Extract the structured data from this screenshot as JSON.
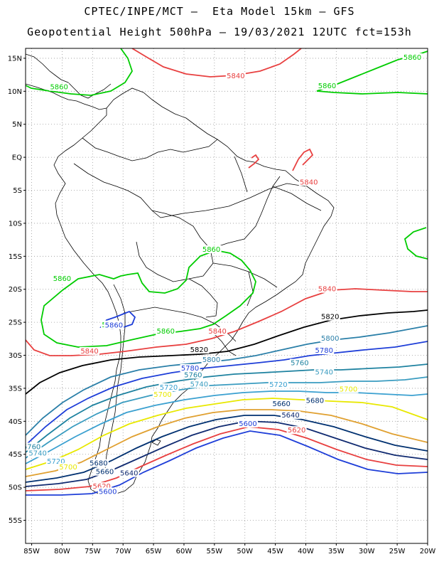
{
  "title": {
    "line1": "CPTEC/INPE/MCT –  Eta Model 15km – GFS",
    "line2": "Geopotential Height 500hPa – 19/03/2021 12UTC fct=153h"
  },
  "axes": {
    "lat_labels": [
      "15N",
      "10N",
      "5N",
      "EQ",
      "5S",
      "10S",
      "15S",
      "20S",
      "25S",
      "30S",
      "35S",
      "40S",
      "45S",
      "50S",
      "55S"
    ],
    "lon_labels": [
      "85W",
      "80W",
      "75W",
      "70W",
      "65W",
      "60W",
      "55W",
      "50W",
      "45W",
      "40W",
      "35W",
      "30W",
      "25W",
      "20W"
    ],
    "lat_range": [
      -58.5,
      16.5
    ],
    "lon_range": [
      -86,
      -20
    ]
  },
  "colors": {
    "5860": "#00cc00",
    "5840": "#e84040",
    "5820": "#000000",
    "5800": "#2a7fa8",
    "5780": "#1e3ed8",
    "5760": "#1e82a0",
    "5740": "#3a9cc0",
    "5720": "#3aa0d0",
    "5700": "#e8e800",
    "5680": "#e0a030",
    "5660": "#003070",
    "5640": "#102a70",
    "5620": "#e84040",
    "5600": "#1e3ed8"
  },
  "contour_labels": [
    {
      "text": "5860",
      "color_key": "5860",
      "lon": -22.5,
      "lat": 15.0
    },
    {
      "text": "5860",
      "color_key": "5860",
      "lon": -80.5,
      "lat": 10.5
    },
    {
      "text": "5860",
      "color_key": "5860",
      "lon": -36.5,
      "lat": 10.7
    },
    {
      "text": "5840",
      "color_key": "5840",
      "lon": -51.5,
      "lat": 12.2
    },
    {
      "text": "5840",
      "color_key": "5840",
      "lon": -39.5,
      "lat": -3.9
    },
    {
      "text": "5860",
      "color_key": "5860",
      "lon": -55.5,
      "lat": -14.1
    },
    {
      "text": "5860",
      "color_key": "5860",
      "lon": -80.0,
      "lat": -18.5
    },
    {
      "text": "5860",
      "color_key": "5860",
      "lon": -72.0,
      "lat": -25.5
    },
    {
      "text": "5860",
      "color_key": "5860",
      "lon": -63.0,
      "lat": -26.5
    },
    {
      "text": "5840",
      "color_key": "5840",
      "lon": -54.5,
      "lat": -26.5
    },
    {
      "text": "5840",
      "color_key": "5840",
      "lon": -36.5,
      "lat": -20.1
    },
    {
      "text": "5820",
      "color_key": "5820",
      "lon": -36.0,
      "lat": -24.3
    },
    {
      "text": "5840",
      "color_key": "5840",
      "lon": -75.5,
      "lat": -29.5
    },
    {
      "text": "5820",
      "color_key": "5820",
      "lon": -57.5,
      "lat": -29.3
    },
    {
      "text": "5800",
      "color_key": "5800",
      "lon": -36.0,
      "lat": -27.6
    },
    {
      "text": "5800",
      "color_key": "5800",
      "lon": -55.5,
      "lat": -30.8
    },
    {
      "text": "5780",
      "color_key": "5780",
      "lon": -59.0,
      "lat": -32.1
    },
    {
      "text": "5780",
      "color_key": "5780",
      "lon": -37.0,
      "lat": -29.4
    },
    {
      "text": "5760",
      "color_key": "5760",
      "lon": -58.5,
      "lat": -33.1
    },
    {
      "text": "5760",
      "color_key": "5760",
      "lon": -41.0,
      "lat": -31.3
    },
    {
      "text": "5740",
      "color_key": "5740",
      "lon": -57.5,
      "lat": -34.5
    },
    {
      "text": "5740",
      "color_key": "5740",
      "lon": -37.0,
      "lat": -32.7
    },
    {
      "text": "5720",
      "color_key": "5720",
      "lon": -62.5,
      "lat": -35.0
    },
    {
      "text": "5720",
      "color_key": "5720",
      "lon": -44.5,
      "lat": -34.6
    },
    {
      "text": "5700",
      "color_key": "5700",
      "lon": -63.5,
      "lat": -36.1
    },
    {
      "text": "5700",
      "color_key": "5700",
      "lon": -33.0,
      "lat": -35.3
    },
    {
      "text": "5660",
      "color_key": "5660",
      "lon": -44.0,
      "lat": -37.5
    },
    {
      "text": "5680",
      "color_key": "5660",
      "lon": -38.5,
      "lat": -37.0
    },
    {
      "text": "5640",
      "color_key": "5640",
      "lon": -42.5,
      "lat": -39.2
    },
    {
      "text": "5600",
      "color_key": "5600",
      "lon": -49.5,
      "lat": -40.5
    },
    {
      "text": "5620",
      "color_key": "5620",
      "lon": -41.5,
      "lat": -41.5
    },
    {
      "text": "5760",
      "color_key": "5760",
      "lon": -85.0,
      "lat": -44.0
    },
    {
      "text": "5740",
      "color_key": "5740",
      "lon": -84.0,
      "lat": -45.0
    },
    {
      "text": "5720",
      "color_key": "5720",
      "lon": -81.0,
      "lat": -46.2
    },
    {
      "text": "5700",
      "color_key": "5700",
      "lon": -79.0,
      "lat": -47.1
    },
    {
      "text": "5680",
      "color_key": "5660",
      "lon": -74.0,
      "lat": -46.5
    },
    {
      "text": "5660",
      "color_key": "5660",
      "lon": -73.0,
      "lat": -47.8
    },
    {
      "text": "5640",
      "color_key": "5640",
      "lon": -69.0,
      "lat": -48.0
    },
    {
      "text": "5620",
      "color_key": "5620",
      "lon": -73.5,
      "lat": -50.0
    },
    {
      "text": "5600",
      "color_key": "5600",
      "lon": -72.5,
      "lat": -50.8
    },
    {
      "text": "5860",
      "color_key": "5780",
      "lon": -71.5,
      "lat": -25.6
    }
  ]
}
